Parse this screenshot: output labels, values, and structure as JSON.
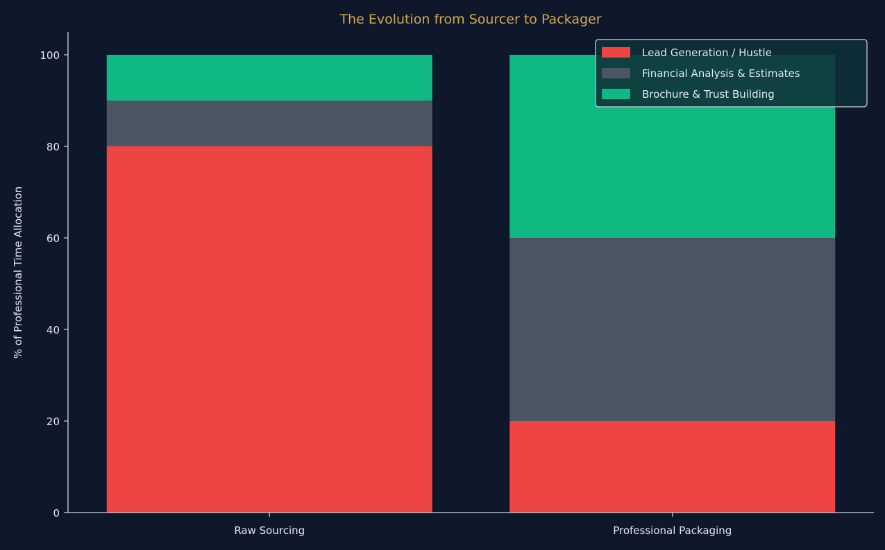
{
  "chart_data": {
    "type": "bar",
    "stacked": true,
    "title": "The Evolution from Sourcer to Packager",
    "xlabel": "",
    "ylabel": "% of Professional Time Allocation",
    "ylim": [
      0,
      105
    ],
    "yticks": [
      0,
      20,
      40,
      60,
      80,
      100
    ],
    "categories": [
      "Raw Sourcing",
      "Professional Packaging"
    ],
    "series": [
      {
        "name": "Lead Generation / Hustle",
        "values": [
          80,
          20
        ],
        "color": "#ef4444"
      },
      {
        "name": "Financial Analysis & Estimates",
        "values": [
          10,
          40
        ],
        "color": "#4b5563"
      },
      {
        "name": "Brochure & Trust Building",
        "values": [
          10,
          40
        ],
        "color": "#10b981"
      }
    ],
    "grid": false,
    "legend_position": "top-right",
    "colors": {
      "background": "#0f172a",
      "title": "#d4a94f",
      "text": "#e2e8f0",
      "axis": "#cbd5e1",
      "legend_bg": "#0f3038",
      "legend_border": "#cbd5e1"
    }
  }
}
